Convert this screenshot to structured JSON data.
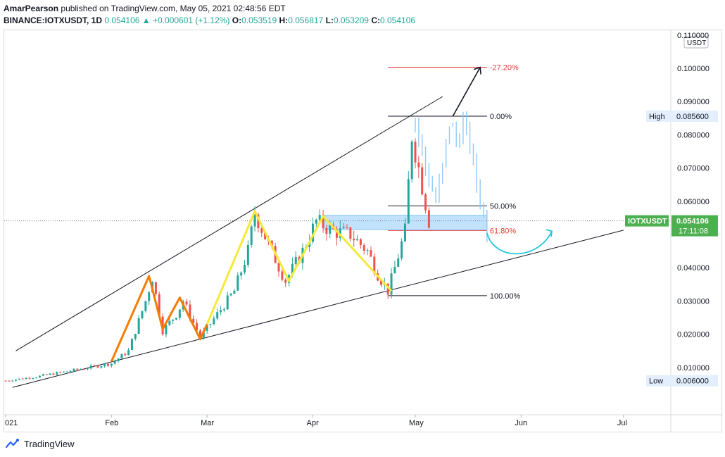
{
  "header": {
    "author": "AmarPearson",
    "published": "published on TradingView.com, May 05, 2021 02:48:56 EDT",
    "symbol": "BINANCE:IOTXUSDT, 1D",
    "last": "0.054106",
    "change_arrow": "▲",
    "change": "+0.000601 (+1.12%)",
    "o_label": "O:",
    "o_value": "0.053519",
    "h_label": "H:",
    "h_value": "0.056817",
    "l_label": "L:",
    "l_value": "0.053209",
    "c_label": "C:",
    "c_value": "0.054106"
  },
  "footer": {
    "brand": "TradingView"
  },
  "colors": {
    "up": "#26a69a",
    "down": "#ef5350",
    "projection": "#90caf9",
    "orange": "#f57c00",
    "yellow": "#f5e93b",
    "cyan": "#26c6da",
    "fib_red": "#e53935",
    "price_tag": "#4caf50"
  },
  "chart_data": {
    "type": "candlestick",
    "currency": "USDT",
    "x_labels": [
      "021",
      "Feb",
      "Mar",
      "Apr",
      "May",
      "Jun",
      "Jul"
    ],
    "y_ticks": [
      "0.110000",
      "0.100000",
      "0.090000",
      "0.080000",
      "0.070000",
      "0.060000",
      "0.040000",
      "0.030000",
      "0.020000",
      "0.010000"
    ],
    "ylim": [
      0.0,
      0.112
    ],
    "high": {
      "label": "High",
      "value": "0.085600"
    },
    "low": {
      "label": "Low",
      "value": "0.006000"
    },
    "last_price": {
      "symbol": "IOTXUSDT",
      "value": "0.054106",
      "countdown": "17:11:08"
    },
    "fib_levels": [
      {
        "label": "-27.20%",
        "price": 0.1003,
        "color": "red"
      },
      {
        "label": "0.00%",
        "price": 0.0856,
        "color": "black"
      },
      {
        "label": "50.00%",
        "price": 0.0586,
        "color": "black"
      },
      {
        "label": "61.80%",
        "price": 0.0512,
        "color": "red"
      },
      {
        "label": "100.00%",
        "price": 0.0316,
        "color": "black"
      }
    ],
    "close_path": [
      [
        "2021-01-01",
        0.006
      ],
      [
        "2021-01-10",
        0.0072
      ],
      [
        "2021-01-20",
        0.009
      ],
      [
        "2021-02-01",
        0.0112
      ],
      [
        "2021-02-06",
        0.015
      ],
      [
        "2021-02-11",
        0.03
      ],
      [
        "2021-02-13",
        0.037
      ],
      [
        "2021-02-16",
        0.021
      ],
      [
        "2021-02-20",
        0.026
      ],
      [
        "2021-02-22",
        0.03
      ],
      [
        "2021-02-27",
        0.019
      ],
      [
        "2021-03-04",
        0.026
      ],
      [
        "2021-03-09",
        0.033
      ],
      [
        "2021-03-13",
        0.045
      ],
      [
        "2021-03-15",
        0.0565
      ],
      [
        "2021-03-19",
        0.047
      ],
      [
        "2021-03-24",
        0.036
      ],
      [
        "2021-03-29",
        0.045
      ],
      [
        "2021-04-02",
        0.054
      ],
      [
        "2021-04-07",
        0.051
      ],
      [
        "2021-04-12",
        0.05
      ],
      [
        "2021-04-17",
        0.045
      ],
      [
        "2021-04-20",
        0.038
      ],
      [
        "2021-04-23",
        0.033
      ],
      [
        "2021-04-25",
        0.04
      ],
      [
        "2021-04-28",
        0.051
      ],
      [
        "2021-04-30",
        0.08
      ],
      [
        "2021-05-02",
        0.07
      ],
      [
        "2021-05-05",
        0.0541
      ]
    ],
    "projection_path": [
      [
        "2021-05-01",
        0.084
      ],
      [
        "2021-05-04",
        0.07
      ],
      [
        "2021-05-07",
        0.06
      ],
      [
        "2021-05-09",
        0.07
      ],
      [
        "2021-05-11",
        0.084
      ],
      [
        "2021-05-13",
        0.078
      ],
      [
        "2021-05-15",
        0.083
      ],
      [
        "2021-05-17",
        0.077
      ],
      [
        "2021-05-19",
        0.065
      ],
      [
        "2021-05-21",
        0.056
      ],
      [
        "2021-05-22",
        0.05
      ]
    ],
    "orange_pattern": [
      [
        "2021-02-01",
        0.0118
      ],
      [
        "2021-02-12",
        0.0375
      ],
      [
        "2021-02-16",
        0.0215
      ],
      [
        "2021-02-21",
        0.031
      ],
      [
        "2021-02-27",
        0.0185
      ],
      [
        "2021-03-01",
        0.023
      ]
    ],
    "yellow_pattern": [
      [
        "2021-03-01",
        0.023
      ],
      [
        "2021-03-15",
        0.057
      ],
      [
        "2021-03-25",
        0.036
      ],
      [
        "2021-04-04",
        0.0555
      ],
      [
        "2021-04-24",
        0.033
      ]
    ],
    "trendline_upper": [
      [
        "2021-01-04",
        0.015
      ],
      [
        "2021-05-09",
        0.0915
      ]
    ],
    "trendline_lower": [
      [
        "2021-01-03",
        0.004
      ],
      [
        "2021-07-01",
        0.0513
      ]
    ],
    "support_zone": {
      "from": "2021-04-04",
      "to": "2021-05-22",
      "top": 0.0558,
      "bottom": 0.0515
    },
    "current_price": 0.054106
  }
}
